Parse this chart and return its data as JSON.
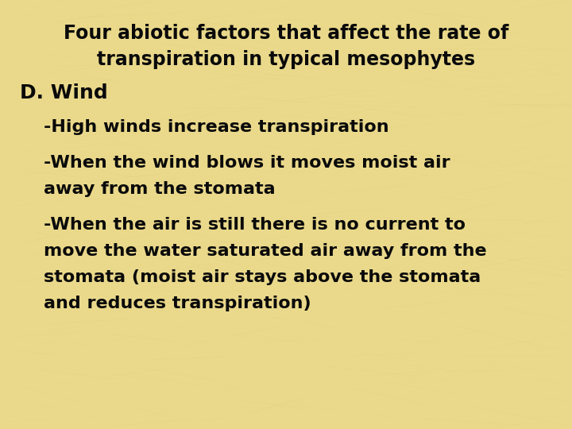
{
  "background_color": "#EAD98B",
  "text_color": "#0a0a0a",
  "title_line1": "Four abiotic factors that affect the rate of",
  "title_line2": "transpiration in typical mesophytes",
  "heading": "D. Wind",
  "bullet1": "-High winds increase transpiration",
  "bullet2_line1": "-When the wind blows it moves moist air",
  "bullet2_line2": "away from the stomata",
  "bullet3_line1": "-When the air is still there is no current to",
  "bullet3_line2": "move the water saturated air away from the",
  "bullet3_line3": "stomata (moist air stays above the stomata",
  "bullet3_line4": "and reduces transpiration)",
  "title_fontsize": 17,
  "heading_fontsize": 18,
  "body_fontsize": 16,
  "figwidth": 7.2,
  "figheight": 5.4,
  "dpi": 100
}
